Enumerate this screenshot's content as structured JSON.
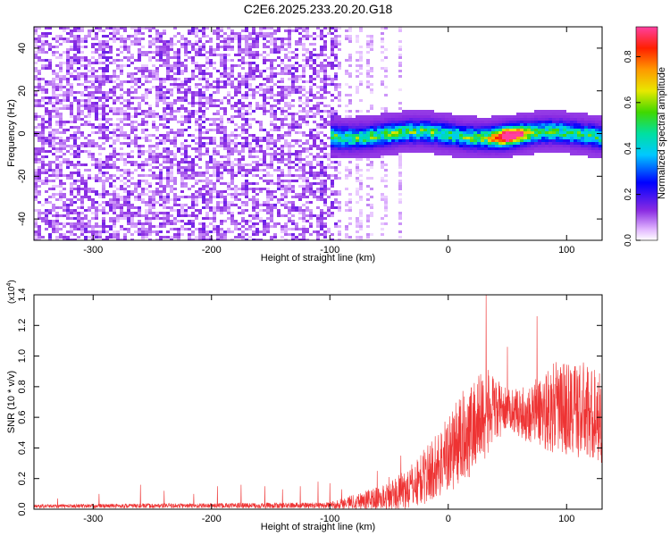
{
  "title": "C2E6.2025.233.20.20.G18",
  "chart_data": [
    {
      "type": "heatmap",
      "title": "C2E6.2025.233.20.20.G18",
      "xlabel": "Height of straight line (km)",
      "ylabel": "Frequency (Hz)",
      "xlim": [
        -350,
        130
      ],
      "ylim": [
        -50,
        50
      ],
      "xticks": [
        -300,
        -200,
        -100,
        0,
        100
      ],
      "yticks": [
        -40,
        -20,
        0,
        20,
        40
      ],
      "noise_region_x": [
        -350,
        -95
      ],
      "sparse_noise_region_x": [
        -95,
        -40
      ],
      "signal_band": {
        "x_start": -100,
        "x_end": 130,
        "center_freq_hz": 0,
        "width_hz": 10,
        "peak_x": 50,
        "peak_amplitude": 0.9
      },
      "colorbar": {
        "label": "Normalized spectral amplitude",
        "range": [
          0.0,
          0.93
        ],
        "ticks": [
          "0.0",
          "0.2",
          "0.4",
          "0.6",
          "0.8"
        ]
      }
    },
    {
      "type": "line",
      "xlabel": "Height of straight line (km)",
      "ylabel": "SNR (10 * v/v)",
      "scale_label": "(x10",
      "scale_exponent": "4",
      "scale_close": ")",
      "xlim": [
        -350,
        130
      ],
      "ylim": [
        0,
        1.4
      ],
      "xticks": [
        -300,
        -200,
        -100,
        0,
        100
      ],
      "yticks": [
        "0.0",
        "0.2",
        "0.4",
        "0.6",
        "0.8",
        "1.0",
        "1.2",
        "1.4"
      ],
      "color": "#ee3333",
      "spikes": [
        {
          "x": -330,
          "y": 0.07
        },
        {
          "x": -295,
          "y": 0.1
        },
        {
          "x": -260,
          "y": 0.16
        },
        {
          "x": -240,
          "y": 0.12
        },
        {
          "x": -215,
          "y": 0.1
        },
        {
          "x": -195,
          "y": 0.15
        },
        {
          "x": -175,
          "y": 0.16
        },
        {
          "x": -155,
          "y": 0.15
        },
        {
          "x": -140,
          "y": 0.13
        },
        {
          "x": -125,
          "y": 0.15
        },
        {
          "x": -110,
          "y": 0.18
        },
        {
          "x": -100,
          "y": 0.17
        },
        {
          "x": -90,
          "y": 0.13
        },
        {
          "x": -60,
          "y": 0.25
        },
        {
          "x": -50,
          "y": 0.21
        },
        {
          "x": -40,
          "y": 0.35
        },
        {
          "x": 32,
          "y": 1.4
        },
        {
          "x": 50,
          "y": 1.06
        },
        {
          "x": 75,
          "y": 1.26
        }
      ],
      "envelope": [
        {
          "x": -350,
          "mean": 0.02,
          "spread": 0.012
        },
        {
          "x": -100,
          "mean": 0.025,
          "spread": 0.02
        },
        {
          "x": -80,
          "mean": 0.05,
          "spread": 0.05
        },
        {
          "x": -50,
          "mean": 0.08,
          "spread": 0.09
        },
        {
          "x": -30,
          "mean": 0.15,
          "spread": 0.15
        },
        {
          "x": -10,
          "mean": 0.28,
          "spread": 0.22
        },
        {
          "x": 10,
          "mean": 0.45,
          "spread": 0.3
        },
        {
          "x": 30,
          "mean": 0.62,
          "spread": 0.32
        },
        {
          "x": 50,
          "mean": 0.66,
          "spread": 0.12
        },
        {
          "x": 65,
          "mean": 0.62,
          "spread": 0.18
        },
        {
          "x": 90,
          "mean": 0.66,
          "spread": 0.3
        },
        {
          "x": 110,
          "mean": 0.65,
          "spread": 0.33
        },
        {
          "x": 130,
          "mean": 0.6,
          "spread": 0.3
        }
      ]
    }
  ]
}
